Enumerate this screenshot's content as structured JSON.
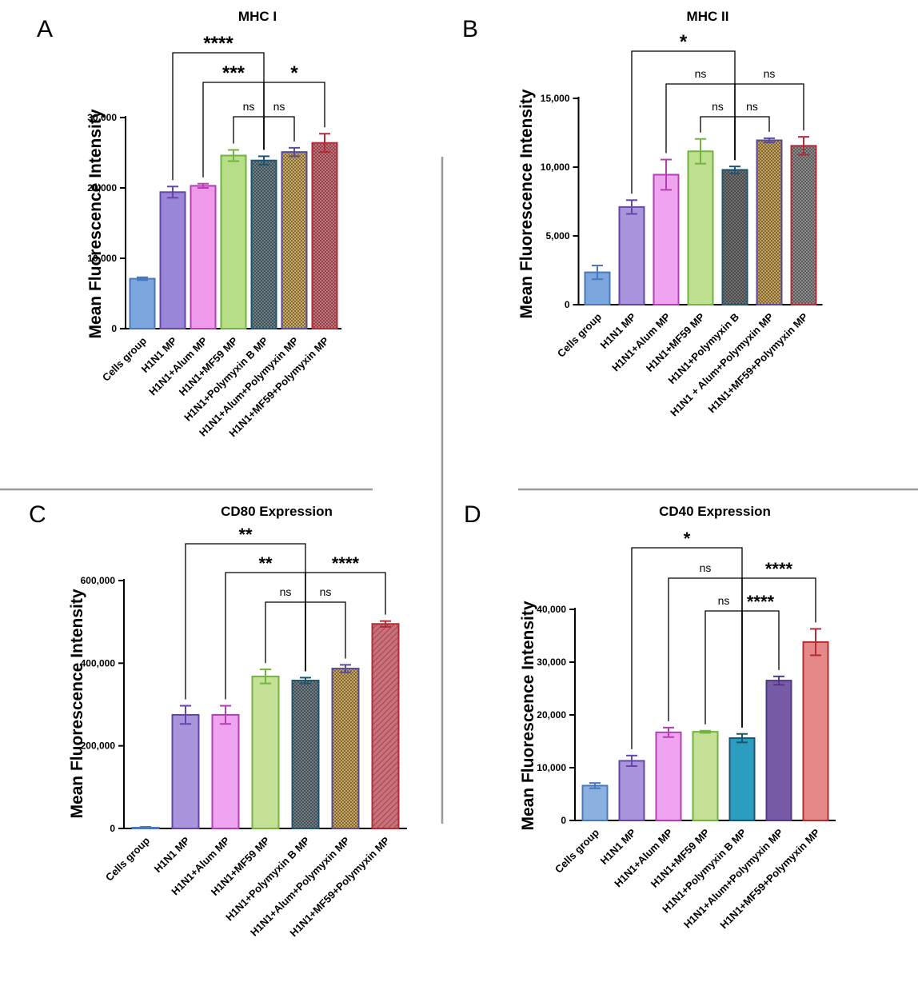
{
  "chart_data": [
    {
      "panel": "A",
      "type": "bar",
      "title": "MHC I",
      "ylabel": "Mean Fluorescence Intensity",
      "ylim": [
        0,
        30000
      ],
      "yticks": [
        0,
        10000,
        20000,
        30000
      ],
      "ytick_labels": [
        "0",
        "10,000",
        "20,000",
        "30,000"
      ],
      "categories": [
        "Cells group",
        "H1N1 MP",
        "H1N1+Alum MP",
        "H1N1+MF59 MP",
        "H1N1+Polymyxin B MP",
        "H1N1+Alum+Polymyxin MP",
        "H1N1+MF59+Polymyxin MP"
      ],
      "values": [
        7100,
        19400,
        20300,
        24600,
        23900,
        25100,
        26400
      ],
      "errors": [
        200,
        800,
        300,
        800,
        600,
        600,
        1300
      ],
      "colors": [
        "#7ba6de",
        "#9a86d8",
        "#ee99ea",
        "#b7df8a",
        "#6a7f86",
        "#c9a860",
        "#cc6f78"
      ],
      "edges": [
        "#4a78bb",
        "#6445a8",
        "#b43fb5",
        "#72b43f",
        "#1e5470",
        "#5a4a9a",
        "#b22b35"
      ],
      "patterns": [
        "solid",
        "solid",
        "solid",
        "solid",
        "grid",
        "grid",
        "grid"
      ],
      "comparisons": [
        {
          "from": 1,
          "to": 4,
          "label": "****"
        },
        {
          "from": 2,
          "to": 4,
          "label": "***"
        },
        {
          "from": 4,
          "to": 6,
          "label": "*"
        },
        {
          "from": 3,
          "to": 4,
          "label": "ns"
        },
        {
          "from": 4,
          "to": 5,
          "label": "ns"
        }
      ]
    },
    {
      "panel": "B",
      "type": "bar",
      "title": "MHC II",
      "ylabel": "Mean Fluorescence Intensity",
      "ylim": [
        0,
        15000
      ],
      "yticks": [
        0,
        5000,
        10000,
        15000
      ],
      "ytick_labels": [
        "0",
        "5,000",
        "10,000",
        "15,000"
      ],
      "categories": [
        "Cells group",
        "H1N1 MP",
        "H1N1+Alum MP",
        "H1N1+MF59 MP",
        "H1N1+Polymyxin B",
        "H1N1 + Alum+Polymyxin MP",
        "H1N1+MF59+Polymyxin MP"
      ],
      "values": [
        2350,
        7100,
        9450,
        11150,
        9800,
        11950,
        11550
      ],
      "errors": [
        500,
        500,
        1100,
        900,
        250,
        150,
        650
      ],
      "colors": [
        "#7ba6de",
        "#a995dc",
        "#eea4ee",
        "#bfe08f",
        "#727272",
        "#c5a058",
        "#8c8c8c"
      ],
      "edges": [
        "#4a78bb",
        "#6445a8",
        "#b43fb5",
        "#72b43f",
        "#1e5470",
        "#5a4a9a",
        "#b22b35"
      ],
      "patterns": [
        "solid",
        "solid",
        "solid",
        "solid",
        "grid",
        "grid",
        "grid"
      ],
      "comparisons": [
        {
          "from": 1,
          "to": 4,
          "label": "*"
        },
        {
          "from": 2,
          "to": 4,
          "label": "ns"
        },
        {
          "from": 4,
          "to": 6,
          "label": "ns"
        },
        {
          "from": 3,
          "to": 4,
          "label": "ns"
        },
        {
          "from": 4,
          "to": 5,
          "label": "ns"
        }
      ]
    },
    {
      "panel": "C",
      "type": "bar",
      "title": "CD80 Expression",
      "ylabel": "Mean Fluorescence Intensity",
      "ylim": [
        0,
        600000
      ],
      "yticks": [
        0,
        200000,
        400000,
        600000
      ],
      "ytick_labels": [
        "0",
        "200,000",
        "400,000",
        "600,000"
      ],
      "categories": [
        "Cells group",
        "H1N1 MP",
        "H1N1+Alum MP",
        "H1N1+MF59 MP",
        "H1N1+Polymyxin B MP",
        "H1N1+Alum+Polymyxin MP",
        "H1N1+MF59+Polymyxin MP"
      ],
      "values": [
        2000,
        275000,
        275000,
        368000,
        358000,
        387000,
        495000
      ],
      "errors": [
        2000,
        22000,
        22000,
        17000,
        7000,
        9000,
        7000
      ],
      "colors": [
        "#7ba6de",
        "#a995dc",
        "#eea4ee",
        "#c4e196",
        "#6e7c84",
        "#c6a45c",
        "#cc6f78"
      ],
      "edges": [
        "#4a78bb",
        "#6445a8",
        "#b43fb5",
        "#72b43f",
        "#1e5470",
        "#5a4a9a",
        "#b22b35"
      ],
      "patterns": [
        "solid",
        "solid",
        "solid",
        "solid",
        "grid",
        "grid",
        "diag"
      ],
      "comparisons": [
        {
          "from": 1,
          "to": 4,
          "label": "**"
        },
        {
          "from": 2,
          "to": 4,
          "label": "**"
        },
        {
          "from": 4,
          "to": 6,
          "label": "****"
        },
        {
          "from": 3,
          "to": 4,
          "label": "ns"
        },
        {
          "from": 4,
          "to": 5,
          "label": "ns"
        }
      ]
    },
    {
      "panel": "D",
      "type": "bar",
      "title": "CD40 Expression",
      "ylabel": "Mean Fluorescence Intensity",
      "ylim": [
        0,
        40000
      ],
      "yticks": [
        0,
        10000,
        20000,
        30000,
        40000
      ],
      "ytick_labels": [
        "0",
        "10,000",
        "20,000",
        "30,000",
        "40,000"
      ],
      "categories": [
        "Cells group",
        "H1N1 MP",
        "H1N1+Alum MP",
        "H1N1+MF59 MP",
        "H1N1+Polymyxin B MP",
        "H1N1+Alum+Polymyxin MP",
        "H1N1+MF59+Polymyxin MP"
      ],
      "values": [
        6600,
        11300,
        16700,
        16800,
        15600,
        26500,
        33800
      ],
      "errors": [
        500,
        1000,
        900,
        200,
        800,
        800,
        2500
      ],
      "colors": [
        "#8ab0e0",
        "#a995dc",
        "#eea4ee",
        "#c4e196",
        "#2a9dc0",
        "#775ba6",
        "#e48888"
      ],
      "edges": [
        "#4a78bb",
        "#6445a8",
        "#b43fb5",
        "#72b43f",
        "#1e5470",
        "#4e3a84",
        "#b22b35"
      ],
      "patterns": [
        "solid",
        "solid",
        "solid",
        "solid",
        "solid",
        "solid",
        "solid"
      ],
      "comparisons": [
        {
          "from": 1,
          "to": 4,
          "label": "*"
        },
        {
          "from": 2,
          "to": 4,
          "label": "ns"
        },
        {
          "from": 4,
          "to": 6,
          "label": "****"
        },
        {
          "from": 3,
          "to": 4,
          "label": "ns"
        },
        {
          "from": 4,
          "to": 5,
          "label": "****"
        }
      ]
    }
  ]
}
